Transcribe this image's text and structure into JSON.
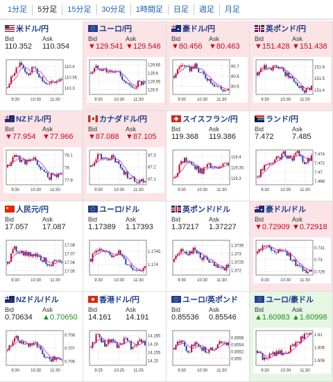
{
  "tabs": [
    "1分足",
    "5分足",
    "15分足",
    "30分足",
    "1時間足",
    "日足",
    "週足",
    "月足"
  ],
  "active_tab": 1,
  "labels": {
    "bid": "Bid",
    "ask": "Ask"
  },
  "pairs": [
    {
      "name": "米ドル/円",
      "flag": "us-flag-icon",
      "bid": "110.352",
      "ask": "110.354",
      "bid_state": "none",
      "ask_state": "none",
      "bg": "none",
      "chart": {
        "yticks": [
          "110.4",
          "110.35",
          "110.3"
        ],
        "ytickvals": [
          110.4,
          110.35,
          110.3
        ],
        "ymin": 110.27,
        "ymax": 110.43,
        "xticks": [
          "9:30",
          "10:30",
          "11:30"
        ],
        "trend": [
          110.3,
          110.38,
          110.41,
          110.36,
          110.4,
          110.34,
          110.31,
          110.33,
          110.35
        ]
      }
    },
    {
      "name": "ユーロ/円",
      "flag": "eu-flag-icon",
      "bid": "▼129.541",
      "ask": "▼129.546",
      "bid_state": "down",
      "ask_state": "down",
      "bg": "down",
      "chart": {
        "yticks": [
          "129.65",
          "129.6",
          "129.55",
          "129.5"
        ],
        "ytickvals": [
          129.65,
          129.6,
          129.55,
          129.5
        ],
        "ymin": 129.47,
        "ymax": 129.68,
        "xticks": [
          "9:30",
          "10:30",
          "11:30"
        ],
        "trend": [
          129.6,
          129.64,
          129.62,
          129.6,
          129.61,
          129.55,
          129.5,
          129.54,
          129.53
        ]
      }
    },
    {
      "name": "豪ドル/円",
      "flag": "au-flag-icon",
      "bid": "▼80.456",
      "ask": "▼80.463",
      "bid_state": "down",
      "ask_state": "down",
      "bg": "down",
      "chart": {
        "yticks": [
          "80.7",
          "80.6",
          "80.5"
        ],
        "ytickvals": [
          80.7,
          80.6,
          80.5
        ],
        "ymin": 80.42,
        "ymax": 80.76,
        "xticks": [
          "9:30",
          "10:30",
          "11:30"
        ],
        "trend": [
          80.6,
          80.72,
          80.66,
          80.7,
          80.62,
          80.58,
          80.52,
          80.47,
          80.46
        ]
      }
    },
    {
      "name": "英ポンド/円",
      "flag": "gb-flag-icon",
      "bid": "▼151.428",
      "ask": "▼151.438",
      "bid_state": "down",
      "ask_state": "down",
      "bg": "down",
      "chart": {
        "yticks": [
          "151.6",
          "151.5",
          "151.4"
        ],
        "ytickvals": [
          151.6,
          151.5,
          151.4
        ],
        "ymin": 151.36,
        "ymax": 151.66,
        "xticks": [
          "9:30",
          "10:30",
          "11:30"
        ],
        "trend": [
          151.55,
          151.62,
          151.58,
          151.6,
          151.54,
          151.5,
          151.44,
          151.4,
          151.43
        ]
      }
    },
    {
      "name": "NZドル/円",
      "flag": "nz-flag-icon",
      "bid": "▼77.954",
      "ask": "▼77.966",
      "bid_state": "down",
      "ask_state": "down",
      "bg": "down",
      "chart": {
        "yticks": [
          "78.1",
          "78",
          "77.9"
        ],
        "ytickvals": [
          78.1,
          78.0,
          77.9
        ],
        "ymin": 77.86,
        "ymax": 78.14,
        "xticks": [
          "9:30",
          "10:30",
          "11:30"
        ],
        "trend": [
          78.0,
          78.1,
          78.06,
          78.04,
          78.07,
          77.98,
          77.92,
          77.94,
          77.95
        ]
      }
    },
    {
      "name": "カナダドル/円",
      "flag": "ca-flag-icon",
      "bid": "▼87.088",
      "ask": "▼87.105",
      "bid_state": "down",
      "ask_state": "down",
      "bg": "down",
      "chart": {
        "yticks": [
          "87.3",
          "87.2",
          "87.1"
        ],
        "ytickvals": [
          87.3,
          87.2,
          87.1
        ],
        "ymin": 87.05,
        "ymax": 87.34,
        "xticks": [
          "9:30",
          "10:30",
          "11:30"
        ],
        "trend": [
          87.2,
          87.3,
          87.25,
          87.28,
          87.22,
          87.15,
          87.1,
          87.08,
          87.09
        ]
      }
    },
    {
      "name": "スイスフラン/円",
      "flag": "ch-flag-icon",
      "bid": "119.368",
      "ask": "119.386",
      "bid_state": "none",
      "ask_state": "none",
      "bg": "none",
      "chart": {
        "yticks": [
          "119.4",
          "119.35",
          "119.3"
        ],
        "ytickvals": [
          119.4,
          119.35,
          119.3
        ],
        "ymin": 119.27,
        "ymax": 119.43,
        "xticks": [
          "9:30",
          "10:30",
          "11:30"
        ],
        "trend": [
          119.3,
          119.37,
          119.39,
          119.35,
          119.33,
          119.36,
          119.34,
          119.35,
          119.37
        ]
      }
    },
    {
      "name": "ランド/円",
      "flag": "za-flag-icon",
      "bid": "7.472",
      "ask": "7.485",
      "bid_state": "none",
      "ask_state": "none",
      "bg": "none",
      "chart": {
        "yticks": [
          "7.474",
          "7.472",
          "7.47",
          "7.468"
        ],
        "ytickvals": [
          7.474,
          7.472,
          7.47,
          7.468
        ],
        "ymin": 7.4672,
        "ymax": 7.4748,
        "xticks": [
          "9:30",
          "10:30",
          "11:30"
        ],
        "trend": [
          7.469,
          7.471,
          7.472,
          7.473,
          7.474,
          7.473,
          7.474,
          7.472,
          7.473
        ]
      }
    },
    {
      "name": "人民元/円",
      "flag": "cn-flag-icon",
      "bid": "17.057",
      "ask": "17.087",
      "bid_state": "none",
      "ask_state": "none",
      "bg": "none",
      "chart": {
        "yticks": [
          "17.08",
          "17.07",
          "17.06",
          "17.05"
        ],
        "ytickvals": [
          17.08,
          17.07,
          17.06,
          17.05
        ],
        "ymin": 17.045,
        "ymax": 17.085,
        "xticks": [
          "9:30",
          "10:30",
          "11:30"
        ],
        "trend": [
          17.06,
          17.075,
          17.072,
          17.068,
          17.07,
          17.064,
          17.058,
          17.06,
          17.057
        ]
      }
    },
    {
      "name": "ユーロ/ドル",
      "flag": "eu-flag-icon",
      "bid": "1.17389",
      "ask": "1.17393",
      "bid_state": "none",
      "ask_state": "none",
      "bg": "none",
      "chart": {
        "yticks": [
          "1.1745",
          "1.174"
        ],
        "ytickvals": [
          1.1745,
          1.174
        ],
        "ymin": 1.1736,
        "ymax": 1.1749,
        "xticks": [
          "9:30",
          "10:30",
          "11:30"
        ],
        "trend": [
          1.1742,
          1.1746,
          1.1744,
          1.1743,
          1.1745,
          1.1741,
          1.1739,
          1.1738,
          1.1739
        ]
      }
    },
    {
      "name": "英ポンド/ドル",
      "flag": "gb-flag-icon",
      "bid": "1.37217",
      "ask": "1.37227",
      "bid_state": "none",
      "ask_state": "none",
      "bg": "none",
      "chart": {
        "yticks": [
          "1.3735",
          "1.373",
          "1.3725",
          "1.372"
        ],
        "ytickvals": [
          1.3735,
          1.373,
          1.3725,
          1.372
        ],
        "ymin": 1.3717,
        "ymax": 1.3738,
        "xticks": [
          "9:30",
          "10:30",
          "11:30"
        ],
        "trend": [
          1.3725,
          1.3734,
          1.373,
          1.3732,
          1.3728,
          1.3726,
          1.3722,
          1.372,
          1.3722
        ]
      }
    },
    {
      "name": "豪ドル/ドル",
      "flag": "au-flag-icon",
      "bid": "▼0.72909",
      "ask": "▼0.72918",
      "bid_state": "down",
      "ask_state": "down",
      "bg": "down",
      "chart": {
        "yticks": [
          "0.731",
          "0.73",
          "0.729"
        ],
        "ytickvals": [
          0.731,
          0.73,
          0.729
        ],
        "ymin": 0.7287,
        "ymax": 0.7316,
        "xticks": [
          "9:30",
          "10:30",
          "11:30"
        ],
        "trend": [
          0.7305,
          0.7312,
          0.7308,
          0.7306,
          0.7309,
          0.73,
          0.7294,
          0.7291,
          0.7291
        ]
      }
    },
    {
      "name": "NZドル/ドル",
      "flag": "nz-flag-icon",
      "bid": "0.70634",
      "ask": "▲0.70650",
      "bid_state": "none",
      "ask_state": "up",
      "bg": "none",
      "chart": {
        "yticks": [
          "0.708",
          "0.707",
          "0.706"
        ],
        "ytickvals": [
          0.708,
          0.707,
          0.706
        ],
        "ymin": 0.7057,
        "ymax": 0.7083,
        "xticks": [
          "9:30",
          "10:30",
          "11:30"
        ],
        "trend": [
          0.7068,
          0.7078,
          0.7074,
          0.7072,
          0.7075,
          0.7066,
          0.7061,
          0.7063,
          0.7063
        ]
      }
    },
    {
      "name": "香港ドル/円",
      "flag": "hk-flag-icon",
      "bid": "14.161",
      "ask": "14.191",
      "bid_state": "none",
      "ask_state": "none",
      "bg": "none",
      "chart": {
        "yticks": [
          "14.165",
          "14.16",
          "14.155",
          "14.15"
        ],
        "ytickvals": [
          14.165,
          14.16,
          14.155,
          14.15
        ],
        "ymin": 14.147,
        "ymax": 14.168,
        "xticks": [
          "9:25",
          "10:25",
          "11:25"
        ],
        "trend": [
          14.158,
          14.166,
          14.16,
          14.163,
          14.157,
          14.164,
          14.158,
          14.161,
          14.161
        ]
      }
    },
    {
      "name": "ユーロ/英ポンド",
      "flag": "eu-flag-icon",
      "bid": "0.85536",
      "ask": "0.85546",
      "bid_state": "none",
      "ask_state": "none",
      "bg": "none",
      "chart": {
        "yticks": [
          "0.8556",
          "0.8554",
          "0.8552",
          "0.855"
        ],
        "ytickvals": [
          0.8556,
          0.8554,
          0.8552,
          0.855
        ],
        "ymin": 0.8548,
        "ymax": 0.8558,
        "xticks": [
          "9:30",
          "10:30",
          "11:30"
        ],
        "trend": [
          0.8553,
          0.8555,
          0.8552,
          0.8554,
          0.8553,
          0.8552,
          0.8553,
          0.8555,
          0.8554
        ]
      }
    },
    {
      "name": "ユーロ/豪ドル",
      "flag": "eu-flag-icon",
      "bid": "▲1.60983",
      "ask": "▲1.60998",
      "bid_state": "up",
      "ask_state": "up",
      "bg": "up",
      "chart": {
        "yticks": [
          "1.61",
          "1.608",
          "1.606"
        ],
        "ytickvals": [
          1.61,
          1.608,
          1.606
        ],
        "ymin": 1.6052,
        "ymax": 1.6106,
        "xticks": [
          "9:30",
          "10:30",
          "11:30"
        ],
        "trend": [
          1.6075,
          1.6062,
          1.6068,
          1.6072,
          1.607,
          1.608,
          1.609,
          1.6098,
          1.61
        ]
      }
    }
  ]
}
